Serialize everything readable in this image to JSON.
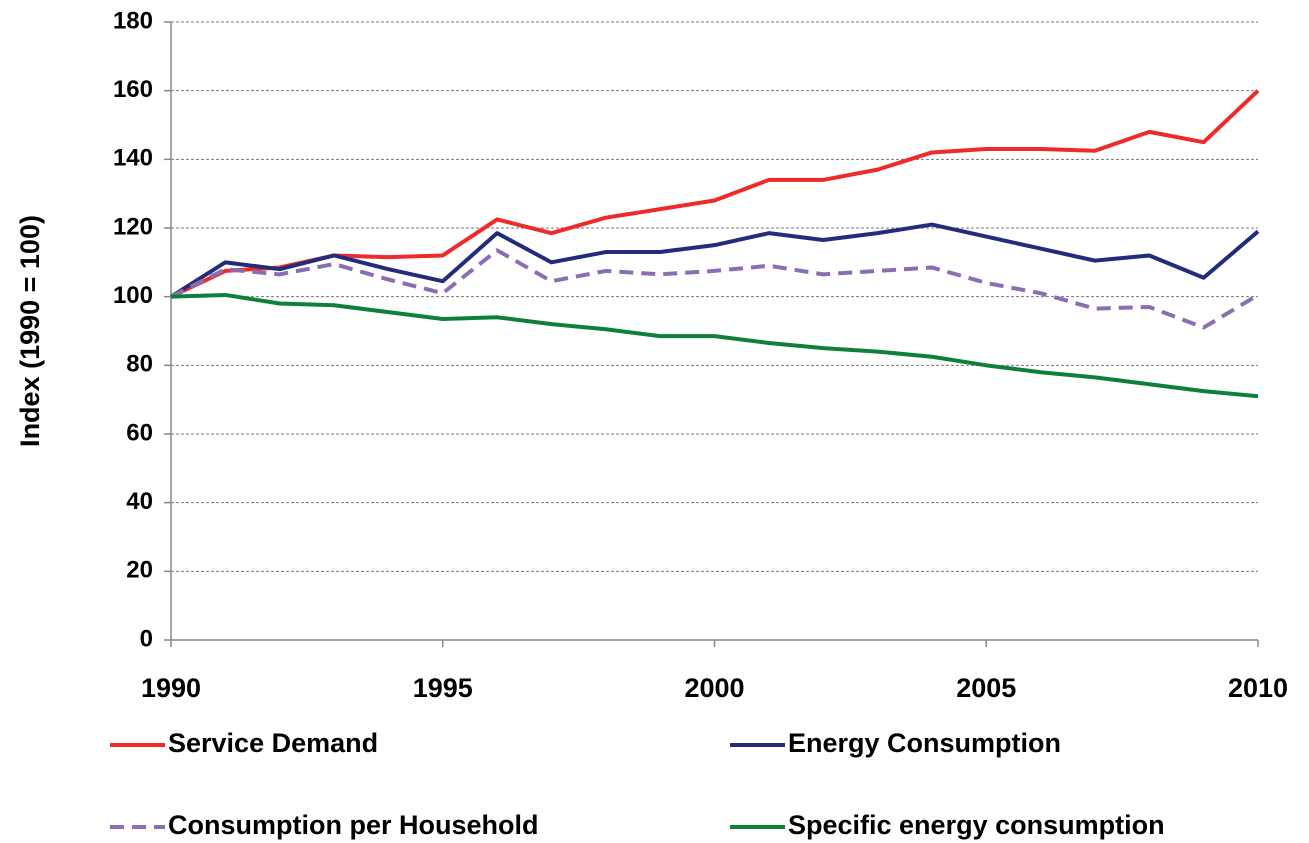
{
  "chart_data": {
    "type": "line",
    "y_label": "Index (1990 = 100)",
    "x": [
      1990,
      1991,
      1992,
      1993,
      1994,
      1995,
      1996,
      1997,
      1998,
      1999,
      2000,
      2001,
      2002,
      2003,
      2004,
      2005,
      2006,
      2007,
      2008,
      2009,
      2010
    ],
    "xlim": [
      1990,
      2010
    ],
    "xticks": [
      1990,
      1995,
      2000,
      2005,
      2010
    ],
    "ylim": [
      0,
      180
    ],
    "yticks": [
      0,
      20,
      40,
      60,
      80,
      100,
      120,
      140,
      160,
      180
    ],
    "grid": true,
    "series": [
      {
        "name": "Service Demand",
        "color": "#ee2a2a",
        "line_style": "solid",
        "values": [
          100,
          107.5,
          108.5,
          112,
          111.5,
          112,
          122.5,
          118.5,
          123,
          125.5,
          128,
          134,
          134,
          137,
          142,
          143,
          143,
          142.5,
          148,
          145,
          160
        ]
      },
      {
        "name": "Energy Consumption",
        "color": "#232c7c",
        "line_style": "solid",
        "values": [
          100,
          110,
          108,
          112,
          108,
          104.5,
          118.5,
          110,
          113,
          113,
          115,
          118.5,
          116.5,
          118.5,
          121,
          117.5,
          114,
          110.5,
          112,
          105.5,
          119
        ]
      },
      {
        "name": "Consumption per Household",
        "color": "#8a6db3",
        "line_style": "dashed",
        "values": [
          100,
          108,
          106.5,
          109.5,
          105,
          101,
          113.5,
          104.5,
          107.5,
          106.5,
          107.5,
          109,
          106.5,
          107.5,
          108.5,
          104,
          101,
          96.5,
          97,
          91,
          100.5
        ]
      },
      {
        "name": "Specific energy consumption",
        "color": "#0f7f3c",
        "line_style": "solid",
        "values": [
          100,
          100.5,
          98,
          97.5,
          95.5,
          93.5,
          94,
          92,
          90.5,
          88.5,
          88.5,
          86.5,
          85,
          84,
          82.5,
          80,
          78,
          76.5,
          74.5,
          72.5,
          71
        ]
      }
    ]
  }
}
